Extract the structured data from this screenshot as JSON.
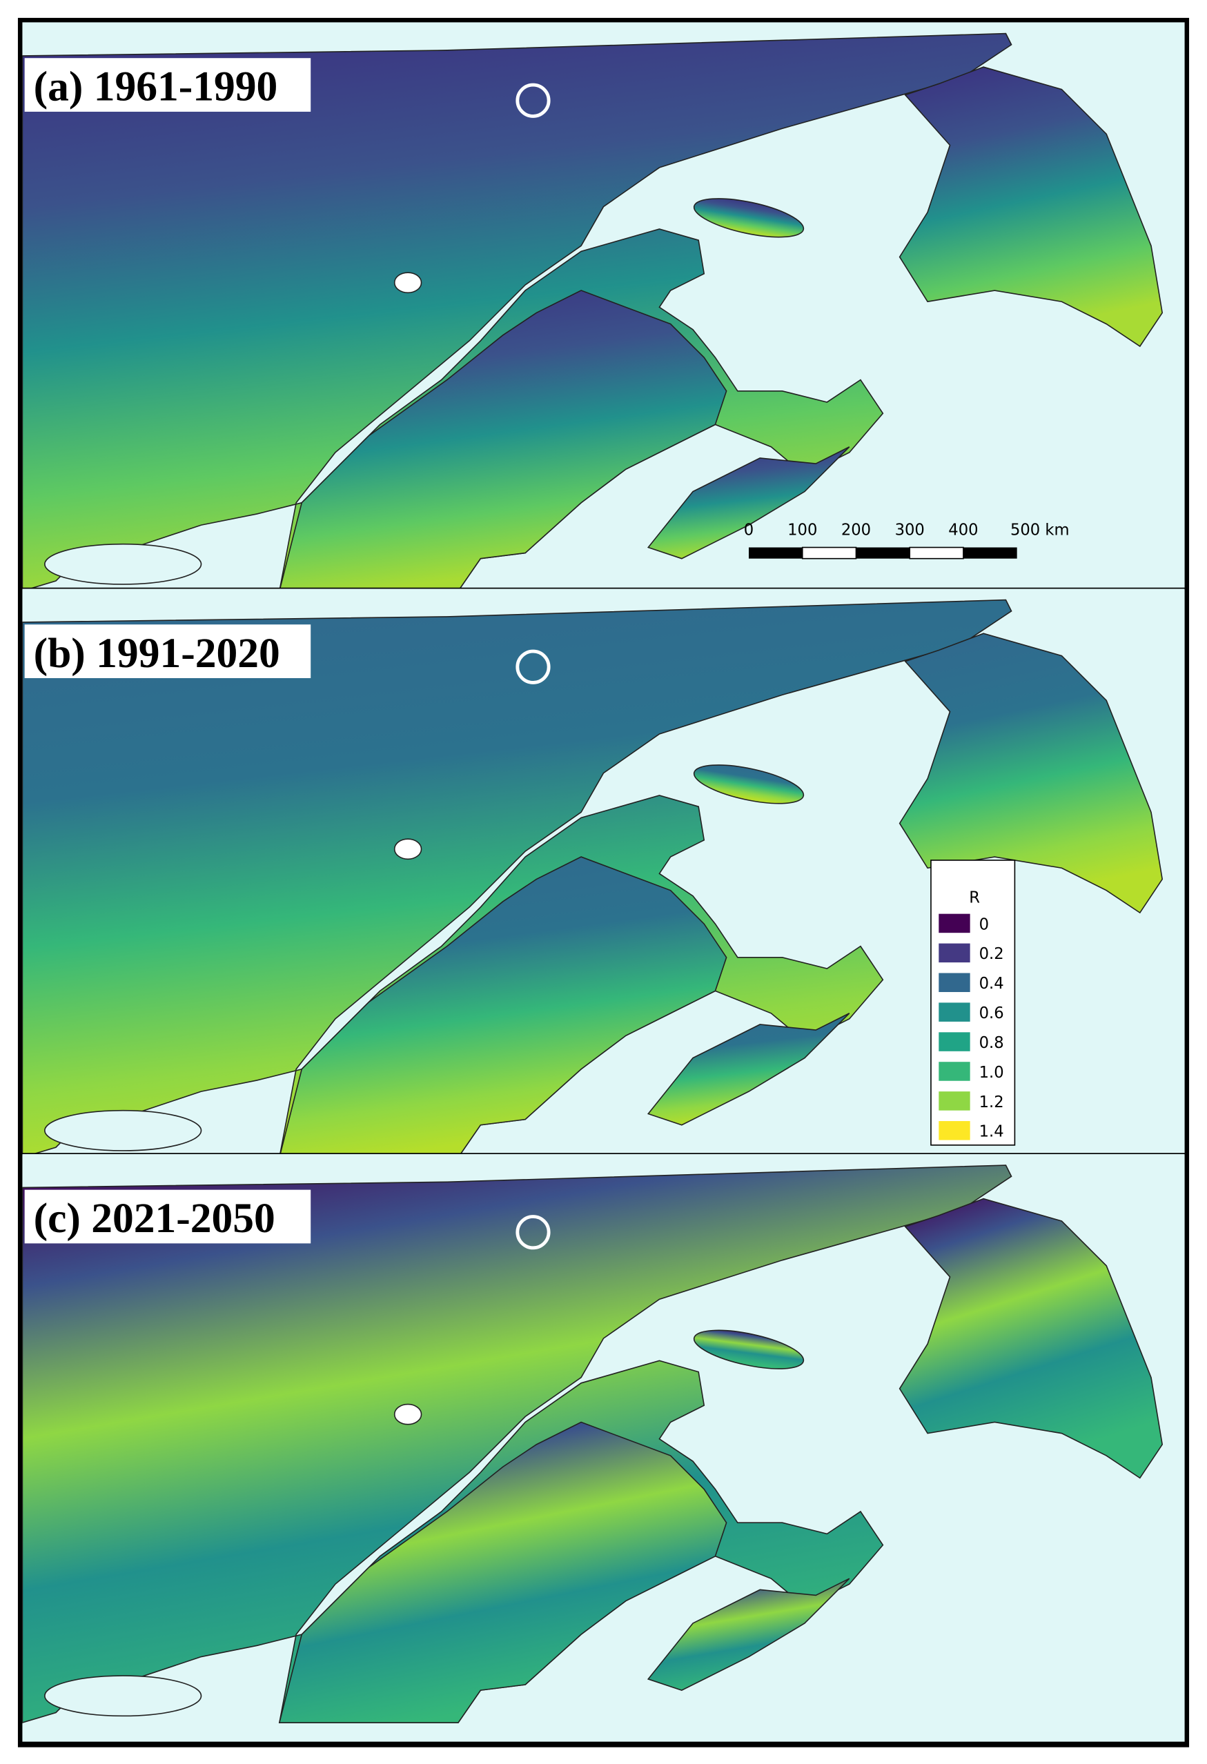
{
  "panels": [
    {
      "title": "(a) 1961-1990"
    },
    {
      "title": "(b) 1991-2020"
    },
    {
      "title": "(c) 2021-2050"
    }
  ],
  "scale_bar": {
    "labels": [
      "0",
      "100",
      "200",
      "300",
      "400",
      "500 km"
    ]
  },
  "legend": {
    "title": "R",
    "items": [
      {
        "label": "0",
        "color": "#440154"
      },
      {
        "label": "0.2",
        "color": "#443983"
      },
      {
        "label": "0.4",
        "color": "#31688e"
      },
      {
        "label": "0.6",
        "color": "#21918c"
      },
      {
        "label": "0.8",
        "color": "#20a486"
      },
      {
        "label": "1.0",
        "color": "#35b779"
      },
      {
        "label": "1.2",
        "color": "#8fd744"
      },
      {
        "label": "1.4",
        "color": "#fde725"
      }
    ]
  }
}
